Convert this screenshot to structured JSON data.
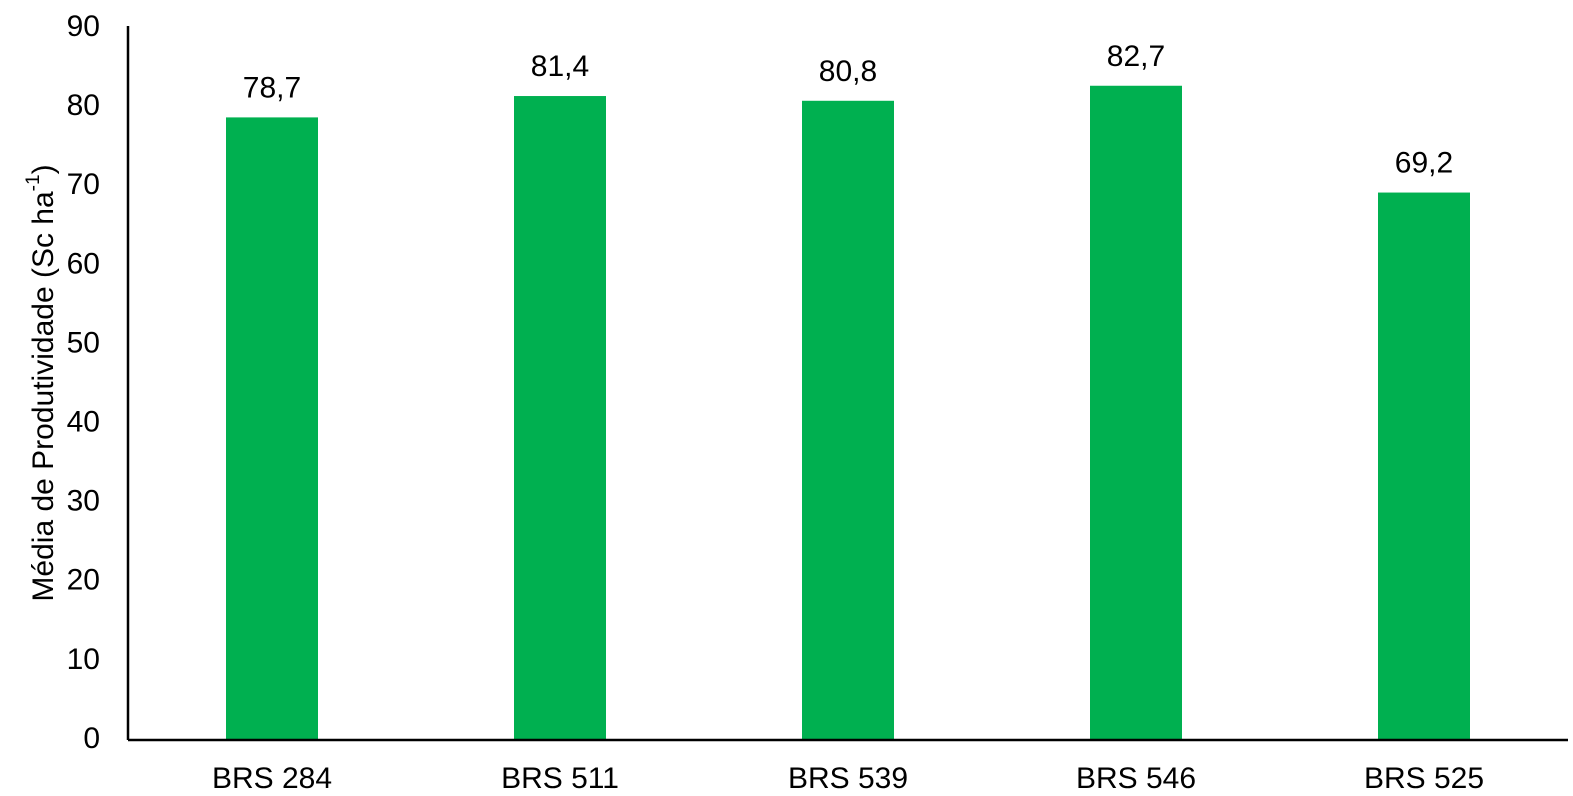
{
  "chart_data": {
    "type": "bar",
    "categories": [
      "BRS 284",
      "BRS 511",
      "BRS 539",
      "BRS 546",
      "BRS 525"
    ],
    "values": [
      78.7,
      81.4,
      80.8,
      82.7,
      69.2
    ],
    "value_labels": [
      "78,7",
      "81,4",
      "80,8",
      "82,7",
      "69,2"
    ],
    "yticks": [
      "0",
      "10",
      "20",
      "30",
      "40",
      "50",
      "60",
      "70",
      "80",
      "90"
    ],
    "ylim": [
      0,
      90
    ],
    "ylabel_main": "Média de Produtividade (Sc ha",
    "ylabel_sup": "-1",
    "ylabel_end": ")",
    "xlabel": "",
    "title": "",
    "bar_color": "#00B050",
    "grid": false,
    "legend": "none"
  }
}
